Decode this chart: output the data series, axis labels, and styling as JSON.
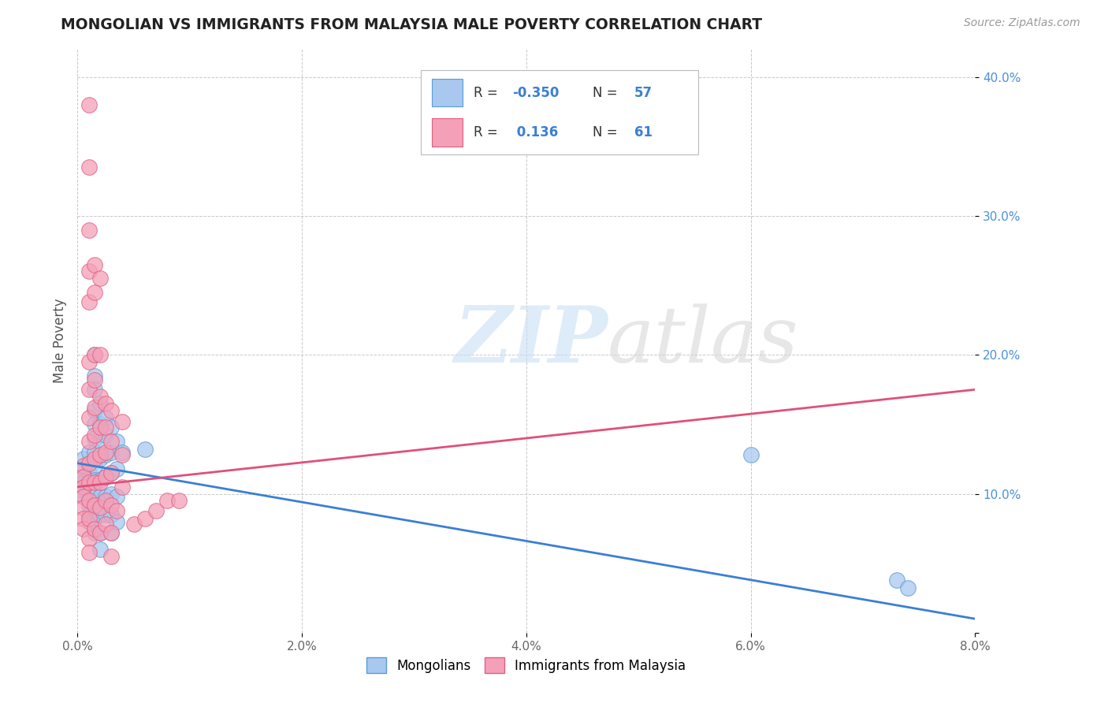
{
  "title": "MONGOLIAN VS IMMIGRANTS FROM MALAYSIA MALE POVERTY CORRELATION CHART",
  "source": "Source: ZipAtlas.com",
  "ylabel": "Male Poverty",
  "xlim": [
    0.0,
    0.08
  ],
  "ylim": [
    0.0,
    0.42
  ],
  "x_ticks": [
    0.0,
    0.02,
    0.04,
    0.06,
    0.08
  ],
  "x_tick_labels": [
    "0.0%",
    "2.0%",
    "4.0%",
    "6.0%",
    "8.0%"
  ],
  "y_ticks": [
    0.0,
    0.1,
    0.2,
    0.3,
    0.4
  ],
  "y_tick_labels": [
    "",
    "10.0%",
    "20.0%",
    "30.0%",
    "40.0%"
  ],
  "mongolian_color": "#a8c8f0",
  "malaysia_color": "#f4a0b8",
  "mongolian_edge_color": "#5b9bd5",
  "malaysia_edge_color": "#e06080",
  "mongolian_line_color": "#3a7fd5",
  "malaysia_line_color": "#e0507a",
  "mongolian_R": -0.35,
  "mongolian_N": 57,
  "malaysia_R": 0.136,
  "malaysia_N": 61,
  "legend_labels": [
    "Mongolians",
    "Immigrants from Malaysia"
  ],
  "watermark_zip": "ZIP",
  "watermark_atlas": "atlas",
  "background_color": "#ffffff",
  "grid_color": "#c8c8c8",
  "mongolian_points": [
    [
      0.0005,
      0.125
    ],
    [
      0.0005,
      0.118
    ],
    [
      0.0005,
      0.112
    ],
    [
      0.0005,
      0.108
    ],
    [
      0.0005,
      0.102
    ],
    [
      0.0005,
      0.098
    ],
    [
      0.001,
      0.13
    ],
    [
      0.001,
      0.122
    ],
    [
      0.001,
      0.115
    ],
    [
      0.001,
      0.108
    ],
    [
      0.001,
      0.1
    ],
    [
      0.001,
      0.092
    ],
    [
      0.001,
      0.085
    ],
    [
      0.001,
      0.08
    ],
    [
      0.0015,
      0.2
    ],
    [
      0.0015,
      0.185
    ],
    [
      0.0015,
      0.175
    ],
    [
      0.0015,
      0.16
    ],
    [
      0.0015,
      0.15
    ],
    [
      0.0015,
      0.14
    ],
    [
      0.0015,
      0.13
    ],
    [
      0.0015,
      0.12
    ],
    [
      0.0015,
      0.11
    ],
    [
      0.0015,
      0.1
    ],
    [
      0.0015,
      0.092
    ],
    [
      0.0015,
      0.082
    ],
    [
      0.0015,
      0.072
    ],
    [
      0.002,
      0.165
    ],
    [
      0.002,
      0.15
    ],
    [
      0.002,
      0.138
    ],
    [
      0.002,
      0.125
    ],
    [
      0.002,
      0.11
    ],
    [
      0.002,
      0.098
    ],
    [
      0.002,
      0.085
    ],
    [
      0.002,
      0.072
    ],
    [
      0.002,
      0.06
    ],
    [
      0.0025,
      0.155
    ],
    [
      0.0025,
      0.142
    ],
    [
      0.0025,
      0.128
    ],
    [
      0.0025,
      0.112
    ],
    [
      0.0025,
      0.098
    ],
    [
      0.0025,
      0.085
    ],
    [
      0.003,
      0.148
    ],
    [
      0.003,
      0.13
    ],
    [
      0.003,
      0.115
    ],
    [
      0.003,
      0.1
    ],
    [
      0.003,
      0.085
    ],
    [
      0.003,
      0.072
    ],
    [
      0.0035,
      0.138
    ],
    [
      0.0035,
      0.118
    ],
    [
      0.0035,
      0.098
    ],
    [
      0.0035,
      0.08
    ],
    [
      0.004,
      0.13
    ],
    [
      0.006,
      0.132
    ],
    [
      0.06,
      0.128
    ],
    [
      0.073,
      0.038
    ],
    [
      0.074,
      0.032
    ]
  ],
  "malaysia_points": [
    [
      0.0005,
      0.12
    ],
    [
      0.0005,
      0.112
    ],
    [
      0.0005,
      0.105
    ],
    [
      0.0005,
      0.098
    ],
    [
      0.0005,
      0.09
    ],
    [
      0.0005,
      0.082
    ],
    [
      0.0005,
      0.075
    ],
    [
      0.001,
      0.38
    ],
    [
      0.001,
      0.335
    ],
    [
      0.001,
      0.29
    ],
    [
      0.001,
      0.26
    ],
    [
      0.001,
      0.238
    ],
    [
      0.001,
      0.195
    ],
    [
      0.001,
      0.175
    ],
    [
      0.001,
      0.155
    ],
    [
      0.001,
      0.138
    ],
    [
      0.001,
      0.122
    ],
    [
      0.001,
      0.108
    ],
    [
      0.001,
      0.095
    ],
    [
      0.001,
      0.082
    ],
    [
      0.001,
      0.068
    ],
    [
      0.001,
      0.058
    ],
    [
      0.0015,
      0.265
    ],
    [
      0.0015,
      0.245
    ],
    [
      0.0015,
      0.2
    ],
    [
      0.0015,
      0.182
    ],
    [
      0.0015,
      0.162
    ],
    [
      0.0015,
      0.142
    ],
    [
      0.0015,
      0.125
    ],
    [
      0.0015,
      0.108
    ],
    [
      0.0015,
      0.092
    ],
    [
      0.0015,
      0.075
    ],
    [
      0.002,
      0.255
    ],
    [
      0.002,
      0.2
    ],
    [
      0.002,
      0.17
    ],
    [
      0.002,
      0.148
    ],
    [
      0.002,
      0.128
    ],
    [
      0.002,
      0.108
    ],
    [
      0.002,
      0.09
    ],
    [
      0.002,
      0.072
    ],
    [
      0.0025,
      0.165
    ],
    [
      0.0025,
      0.148
    ],
    [
      0.0025,
      0.13
    ],
    [
      0.0025,
      0.112
    ],
    [
      0.0025,
      0.095
    ],
    [
      0.0025,
      0.078
    ],
    [
      0.003,
      0.16
    ],
    [
      0.003,
      0.138
    ],
    [
      0.003,
      0.115
    ],
    [
      0.003,
      0.092
    ],
    [
      0.003,
      0.072
    ],
    [
      0.003,
      0.055
    ],
    [
      0.0035,
      0.088
    ],
    [
      0.004,
      0.152
    ],
    [
      0.004,
      0.128
    ],
    [
      0.004,
      0.105
    ],
    [
      0.005,
      0.078
    ],
    [
      0.006,
      0.082
    ],
    [
      0.007,
      0.088
    ],
    [
      0.008,
      0.095
    ],
    [
      0.009,
      0.095
    ]
  ]
}
